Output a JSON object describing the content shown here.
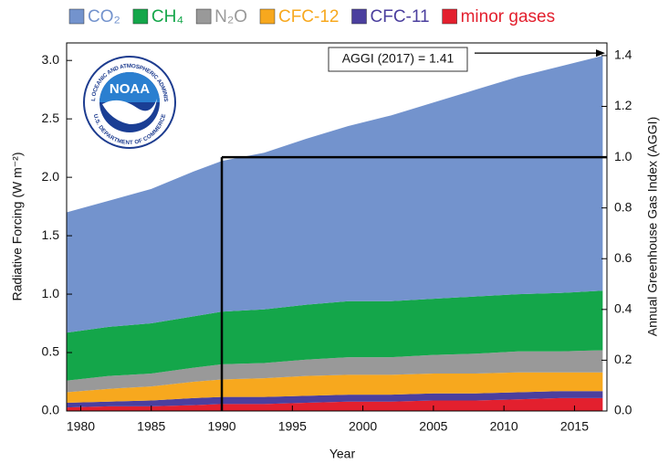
{
  "chart_data": {
    "type": "stacked-area",
    "x_label": "Year",
    "y_label": "Radiative Forcing (W m⁻²)",
    "y2_label": "Annual Greenhouse Gas Index (AGGI)",
    "x": [
      1979,
      1982,
      1985,
      1988,
      1990,
      1993,
      1996,
      1999,
      2002,
      2005,
      2008,
      2011,
      2014,
      2017
    ],
    "series": [
      {
        "name": "minor gases",
        "color": "#e3202e",
        "values": [
          0.03,
          0.04,
          0.04,
          0.05,
          0.06,
          0.06,
          0.07,
          0.08,
          0.08,
          0.09,
          0.09,
          0.1,
          0.11,
          0.11
        ]
      },
      {
        "name": "CFC-11",
        "color": "#4b3f9e",
        "values": [
          0.04,
          0.04,
          0.05,
          0.06,
          0.06,
          0.06,
          0.06,
          0.06,
          0.06,
          0.06,
          0.06,
          0.06,
          0.06,
          0.06
        ]
      },
      {
        "name": "CFC-12",
        "color": "#f7a81e",
        "values": [
          0.09,
          0.11,
          0.12,
          0.14,
          0.15,
          0.16,
          0.17,
          0.17,
          0.17,
          0.17,
          0.17,
          0.17,
          0.16,
          0.16
        ]
      },
      {
        "name": "N₂O",
        "color": "#999999",
        "values": [
          0.1,
          0.11,
          0.11,
          0.12,
          0.13,
          0.13,
          0.14,
          0.15,
          0.15,
          0.16,
          0.17,
          0.18,
          0.18,
          0.19
        ]
      },
      {
        "name": "CH₄",
        "color": "#14a64a",
        "values": [
          0.41,
          0.42,
          0.43,
          0.44,
          0.45,
          0.46,
          0.47,
          0.48,
          0.48,
          0.48,
          0.49,
          0.49,
          0.5,
          0.51
        ]
      },
      {
        "name": "CO₂",
        "color": "#7393cd",
        "values": [
          1.03,
          1.08,
          1.15,
          1.24,
          1.29,
          1.34,
          1.42,
          1.5,
          1.59,
          1.68,
          1.77,
          1.86,
          1.94,
          2.01
        ]
      }
    ],
    "legend_order": [
      5,
      4,
      3,
      2,
      1,
      0
    ],
    "xlim": [
      1979,
      2017.3
    ],
    "xticks": [
      1980,
      1985,
      1990,
      1995,
      2000,
      2005,
      2010,
      2015
    ],
    "ylim": [
      0,
      3.15
    ],
    "yticks": [
      {
        "value": 0,
        "label": "0.0"
      },
      0.5,
      {
        "value": 1,
        "label": "1.0"
      },
      1.5,
      {
        "value": 2,
        "label": "2.0"
      },
      2.5,
      {
        "value": 3,
        "label": "3.0"
      }
    ],
    "y2lim": [
      0,
      1.45
    ],
    "y2ticks": [
      {
        "value": 0,
        "label": "0.0"
      },
      0.2,
      0.4,
      0.6,
      0.8,
      {
        "value": 1,
        "label": "1.0"
      },
      1.2,
      1.4
    ],
    "reference": {
      "x": 1990,
      "y2": 1
    },
    "annotation": {
      "text": "AGGI (2017) = 1.41",
      "value": 1.41
    },
    "logo": {
      "text": "NOAA",
      "ring_text": "NATIONAL OCEANIC AND ATMOSPHERIC ADMINISTRATION",
      "bottom_text": "U.S. DEPARTMENT OF COMMERCE"
    }
  }
}
